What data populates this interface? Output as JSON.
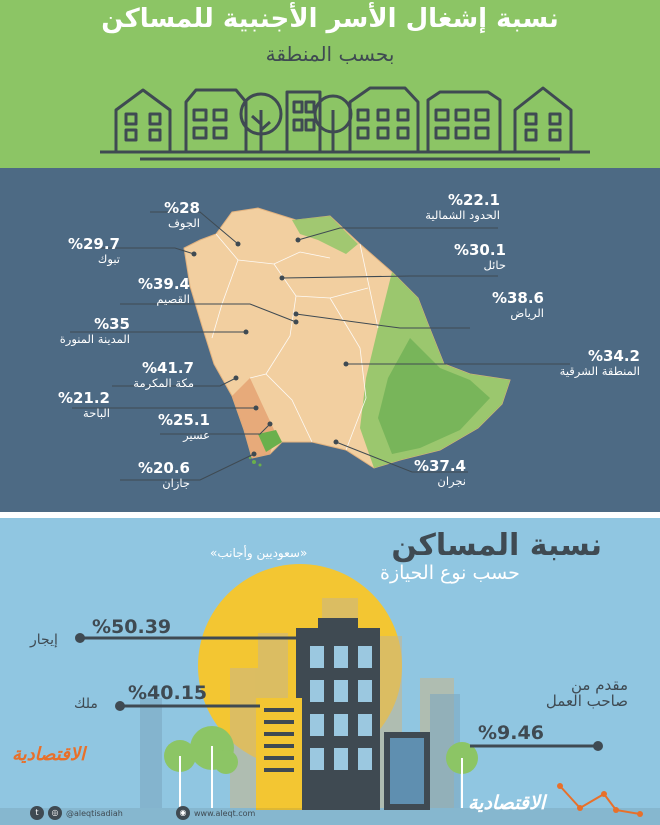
{
  "header": {
    "title": "نسبة إشغال الأسر الأجنبية للمساكن",
    "subtitle": "بحسب المنطقة"
  },
  "regions": [
    {
      "id": "jouf",
      "pct": "%28",
      "name": "الجوف"
    },
    {
      "id": "tabuk",
      "pct": "%29.7",
      "name": "تبوك"
    },
    {
      "id": "qassim",
      "pct": "%39.4",
      "name": "القصيم"
    },
    {
      "id": "madinah",
      "pct": "%35",
      "name": "المدينة المنورة"
    },
    {
      "id": "makkah",
      "pct": "%41.7",
      "name": "مكة المكرمة"
    },
    {
      "id": "baha",
      "pct": "%21.2",
      "name": "الباحة"
    },
    {
      "id": "asir",
      "pct": "%25.1",
      "name": "عسير"
    },
    {
      "id": "jazan",
      "pct": "%20.6",
      "name": "جازان"
    },
    {
      "id": "northern",
      "pct": "%22.1",
      "name": "الحدود الشمالية"
    },
    {
      "id": "hail",
      "pct": "%30.1",
      "name": "حائل"
    },
    {
      "id": "riyadh",
      "pct": "%38.6",
      "name": "الرياض"
    },
    {
      "id": "eastern",
      "pct": "%34.2",
      "name": "المنطقة الشرقية"
    },
    {
      "id": "najran",
      "pct": "%37.4",
      "name": "نجران"
    }
  ],
  "tenure": {
    "title": "نسبة المساكن",
    "note": "«سعوديين وأجانب»",
    "subtitle": "حسب نوع الحيازة",
    "rent": {
      "label": "إيجار",
      "value": "%50.39"
    },
    "owned": {
      "label": "ملك",
      "value": "%40.15"
    },
    "employer": {
      "label_line1": "مقدم من",
      "label_line2": "صاحب العمل",
      "value": "%9.46"
    }
  },
  "footer": {
    "brand": "الاقتصادية",
    "twitter": "@aleqtisadiah",
    "website": "www.aleqt.com"
  },
  "colors": {
    "header_bg": "#8cc565",
    "map_bg": "#4d6a84",
    "bottom_bg": "#90c6e1",
    "dark_text": "#3f4a52",
    "sun": "#f3c632",
    "brand_orange": "#e8702a"
  }
}
